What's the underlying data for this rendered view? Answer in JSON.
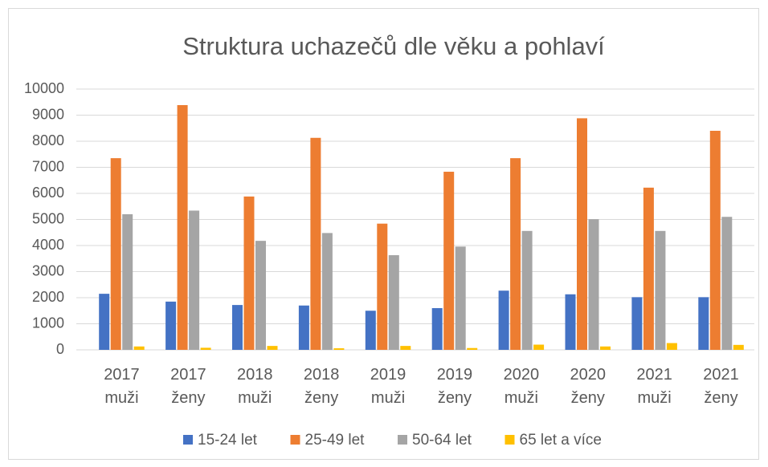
{
  "chart_data": {
    "type": "bar",
    "title": "Struktura uchazečů dle věku a pohlaví",
    "categories": [
      "2017\nmuži",
      "2017\nženy",
      "2018\nmuži",
      "2018\nženy",
      "2019\nmuži",
      "2019\nženy",
      "2020\nmuži",
      "2020\nženy",
      "2021\nmuži",
      "2021\nženy"
    ],
    "series": [
      {
        "name": "15-24 let",
        "color": "#4472c4",
        "values": [
          2150,
          1850,
          1720,
          1700,
          1500,
          1600,
          2270,
          2130,
          2020,
          2020
        ]
      },
      {
        "name": "25-49 let",
        "color": "#ed7d31",
        "values": [
          7350,
          9385,
          5880,
          8130,
          4840,
          6830,
          7350,
          8880,
          6220,
          8400
        ]
      },
      {
        "name": "50-64 let",
        "color": "#a5a5a5",
        "values": [
          5200,
          5340,
          4180,
          4480,
          3630,
          3960,
          4560,
          5010,
          4560,
          5100
        ]
      },
      {
        "name": "65 let a více",
        "color": "#ffc000",
        "values": [
          130,
          80,
          150,
          60,
          150,
          70,
          200,
          130,
          260,
          190
        ]
      }
    ],
    "ylim": [
      0,
      10000
    ],
    "yticks": [
      0,
      1000,
      2000,
      3000,
      4000,
      5000,
      6000,
      7000,
      8000,
      9000,
      10000
    ],
    "grid": true,
    "legend": "bottom"
  }
}
